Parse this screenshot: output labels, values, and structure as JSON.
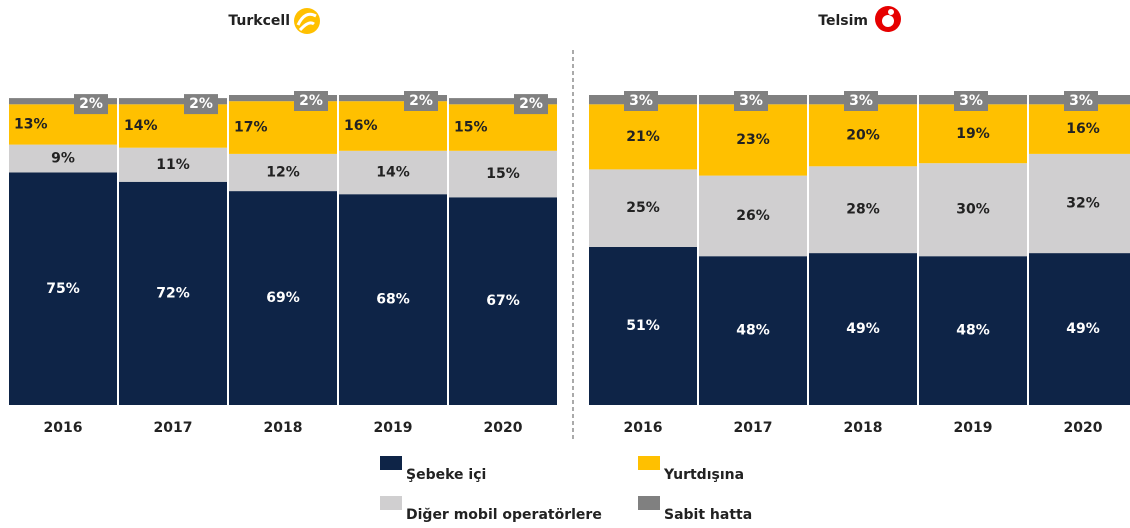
{
  "chart_data": [
    {
      "type": "bar",
      "stacked": true,
      "title": "Turkcell",
      "categories": [
        "2016",
        "2017",
        "2018",
        "2019",
        "2020"
      ],
      "ylim": [
        0,
        100
      ],
      "series": [
        {
          "name": "Şebeke içi",
          "color": "#0e2447",
          "values": [
            75,
            72,
            69,
            68,
            67
          ],
          "value_labels": [
            "75%",
            "72%",
            "69%",
            "68%",
            "67%"
          ]
        },
        {
          "name": "Diğer mobil operatörlere",
          "color": "#d0cfd0",
          "values": [
            9,
            11,
            12,
            14,
            15
          ],
          "value_labels": [
            "9%",
            "11%",
            "12%",
            "14%",
            "15%"
          ]
        },
        {
          "name": "Yurtdışına",
          "color": "#ffc000",
          "values": [
            13,
            14,
            17,
            16,
            15
          ],
          "value_labels": [
            "13%",
            "14%",
            "17%",
            "16%",
            "15%"
          ]
        },
        {
          "name": "Sabit hatta",
          "color": "#808080",
          "values": [
            2,
            2,
            2,
            2,
            2
          ],
          "value_labels": [
            "2%",
            "2%",
            "2%",
            "2%",
            "2%"
          ]
        }
      ]
    },
    {
      "type": "bar",
      "stacked": true,
      "title": "Telsim",
      "categories": [
        "2016",
        "2017",
        "2018",
        "2019",
        "2020"
      ],
      "ylim": [
        0,
        100
      ],
      "series": [
        {
          "color": "#0e2447",
          "values": [
            51,
            48,
            49,
            48,
            49
          ],
          "value_labels": [
            "51%",
            "48%",
            "49%",
            "48%",
            "49%"
          ]
        },
        {
          "color": "#d0cfd0",
          "values": [
            25,
            26,
            28,
            30,
            32
          ],
          "value_labels": [
            "25%",
            "26%",
            "28%",
            "30%",
            "32%"
          ]
        },
        {
          "color": "#ffc000",
          "values": [
            21,
            23,
            20,
            19,
            16
          ],
          "value_labels": [
            "21%",
            "23%",
            "20%",
            "19%",
            "16%"
          ]
        },
        {
          "color": "#808080",
          "values": [
            3,
            3,
            3,
            3,
            3
          ],
          "value_labels": [
            "3%",
            "3%",
            "3%",
            "3%",
            "3%"
          ]
        }
      ]
    }
  ]
}
